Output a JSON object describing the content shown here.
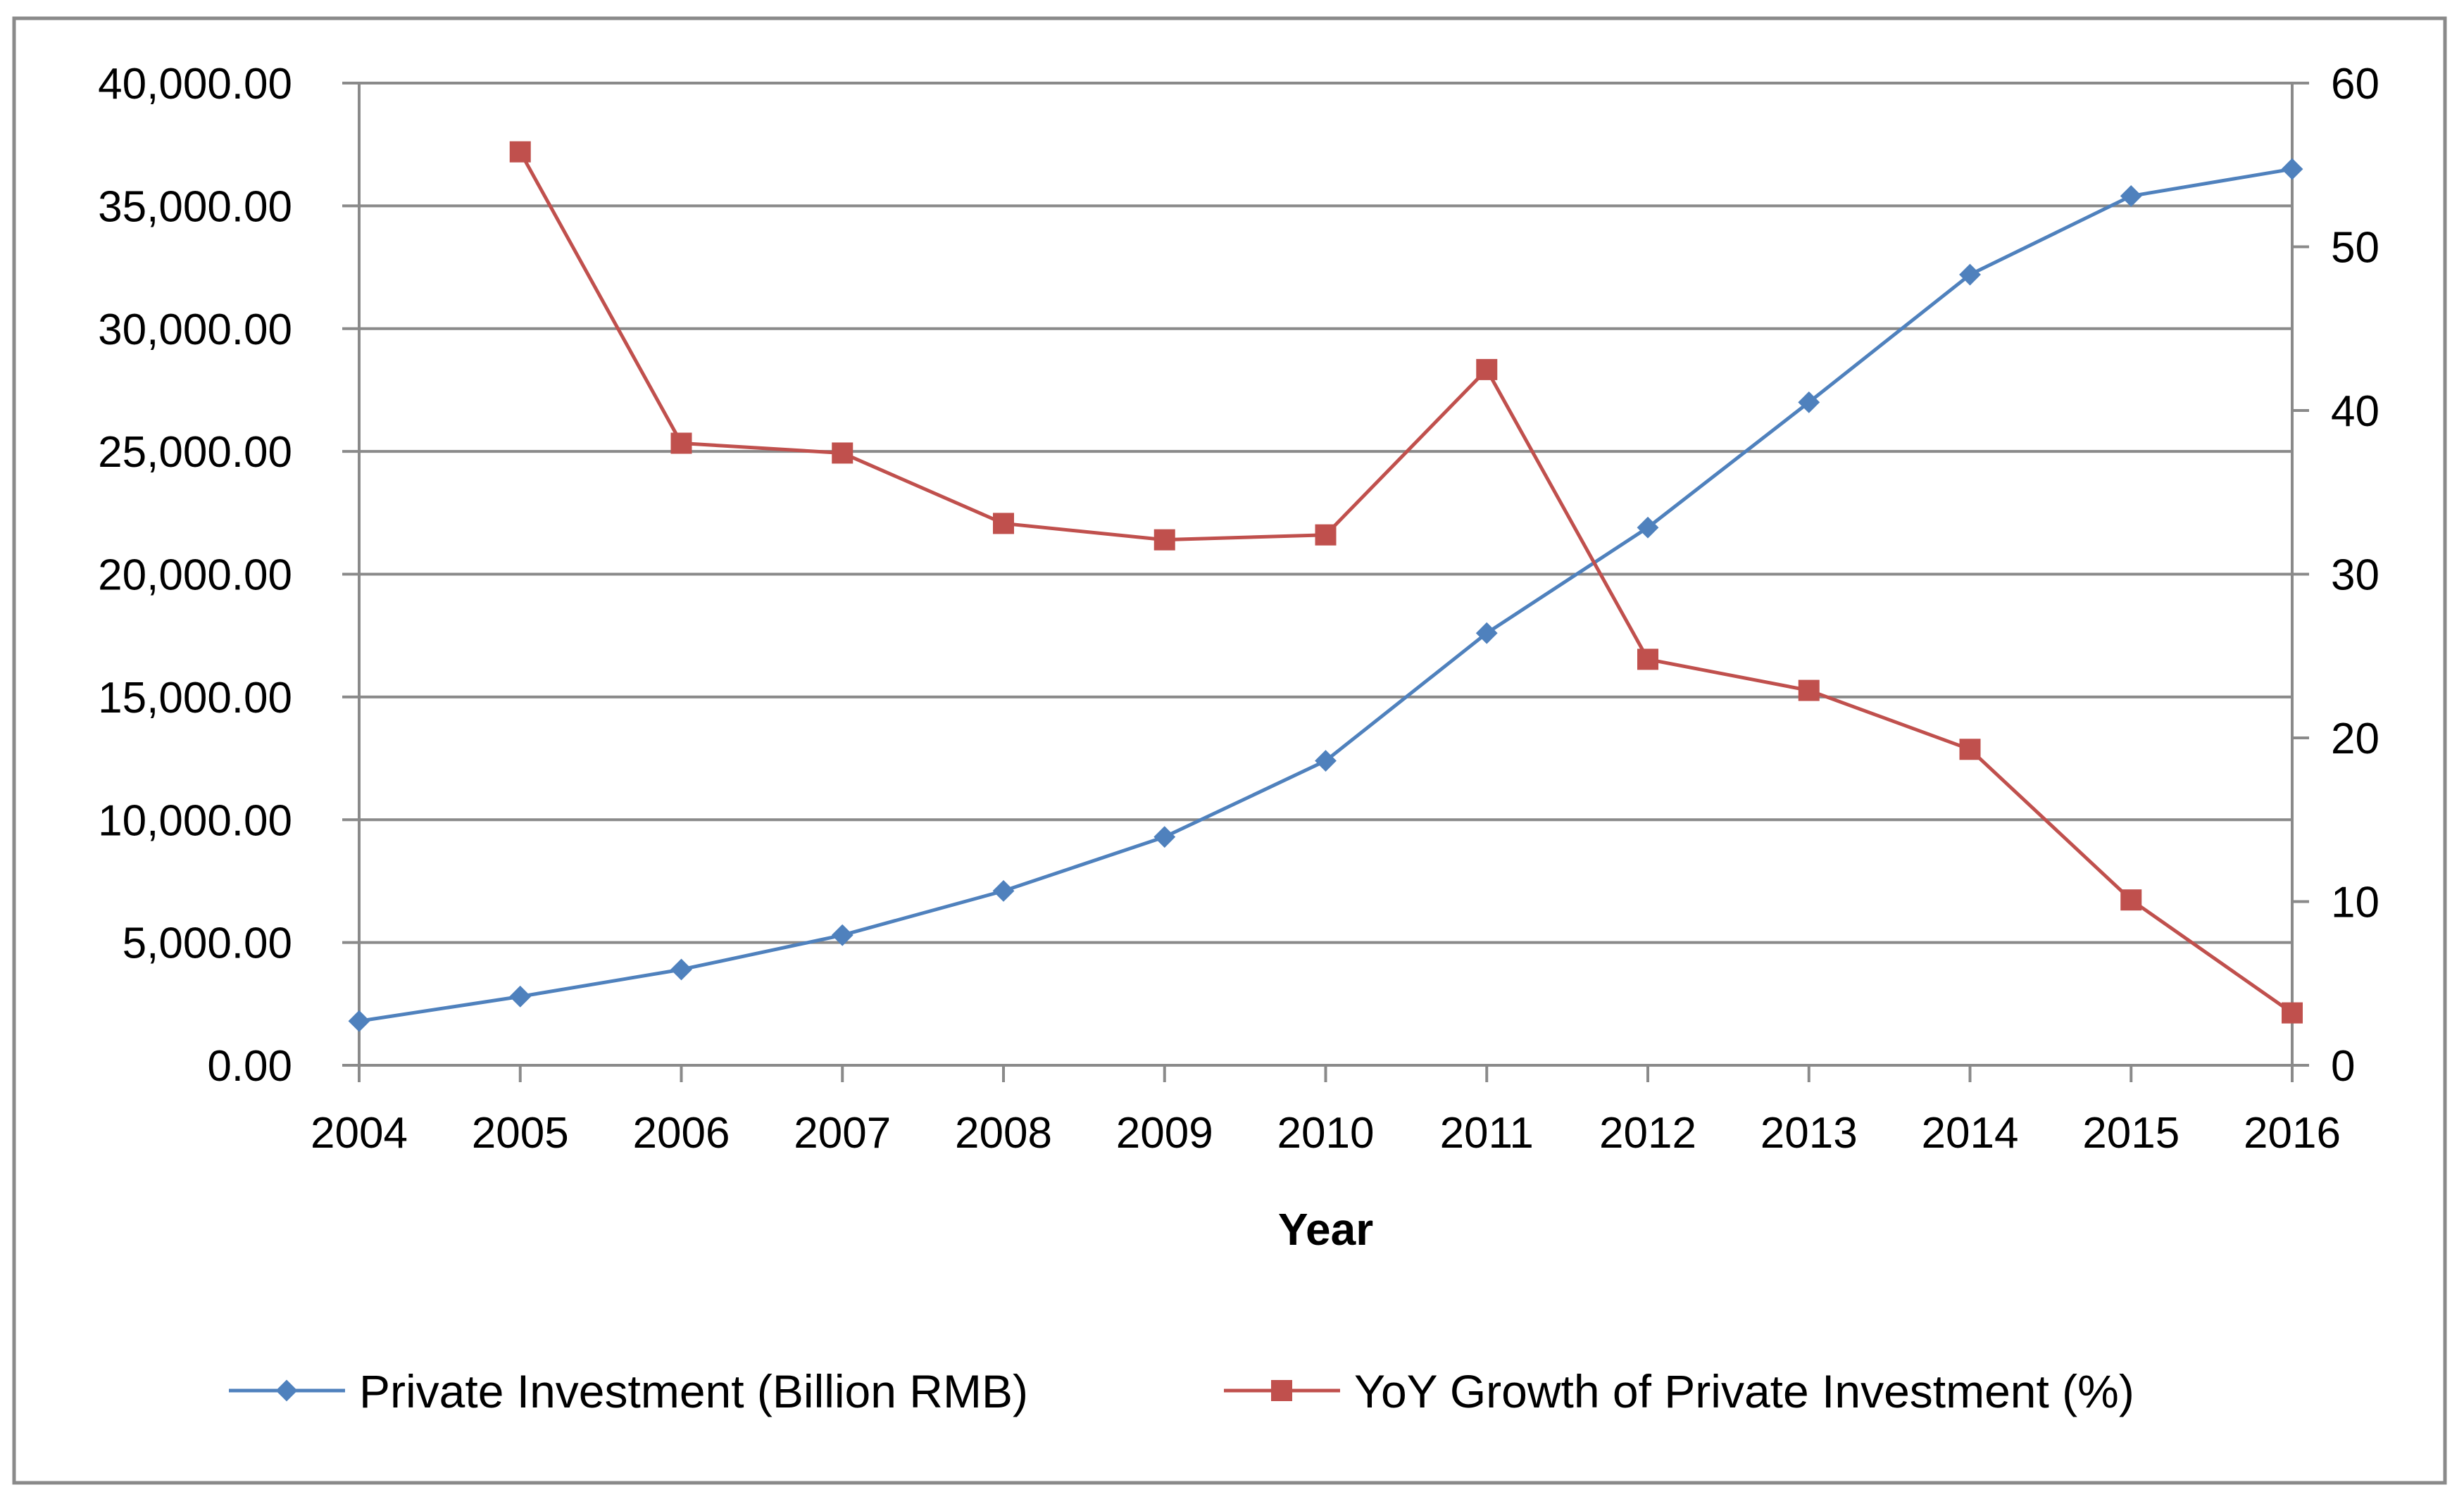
{
  "chart_data": {
    "type": "line",
    "title": "",
    "xlabel": "Year",
    "ylabel": "",
    "y2label": "",
    "categories": [
      "2004",
      "2005",
      "2006",
      "2007",
      "2008",
      "2009",
      "2010",
      "2011",
      "2012",
      "2013",
      "2014",
      "2015",
      "2016"
    ],
    "series": [
      {
        "name": "Private Investment (Billion RMB)",
        "axis": "left",
        "color": "#4F81BD",
        "marker": "diamond",
        "values": [
          1800,
          2800,
          3900,
          5300,
          7100,
          9300,
          12400,
          17600,
          21900,
          27000,
          32200,
          35400,
          36500
        ]
      },
      {
        "name": "YoY Growth of Private Investment (%)",
        "axis": "right",
        "color": "#C0504D",
        "marker": "square",
        "values": [
          null,
          55.8,
          38.0,
          37.4,
          33.1,
          32.1,
          32.4,
          42.5,
          24.8,
          22.9,
          19.3,
          10.1,
          3.2
        ]
      }
    ],
    "ylim": [
      0,
      40000
    ],
    "y_ticks": [
      "0.00",
      "5,000.00",
      "10,000.00",
      "15,000.00",
      "20,000.00",
      "25,000.00",
      "30,000.00",
      "35,000.00",
      "40,000.00"
    ],
    "y2lim": [
      0,
      60
    ],
    "y2_ticks": [
      "0",
      "10",
      "20",
      "30",
      "40",
      "50",
      "60"
    ],
    "grid": true,
    "legend_position": "bottom"
  }
}
